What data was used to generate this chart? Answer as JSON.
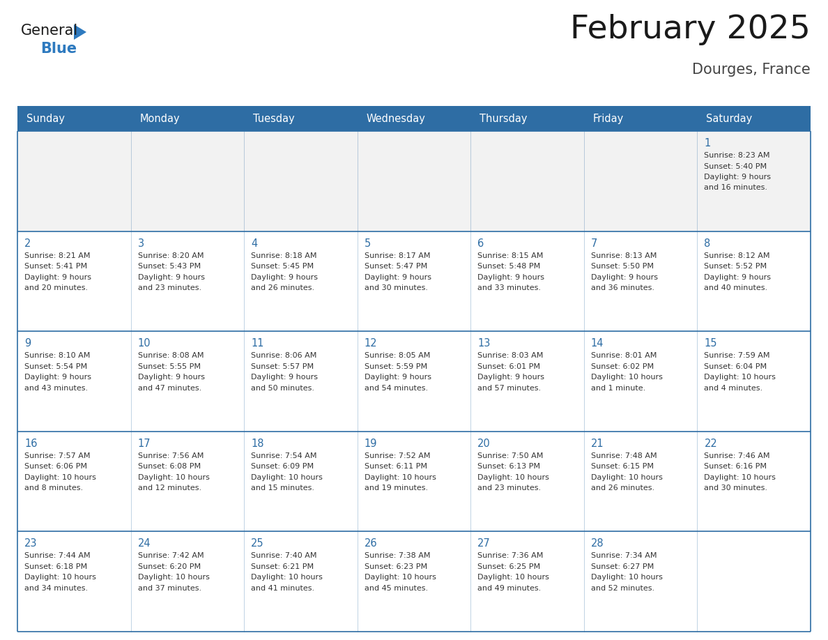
{
  "title": "February 2025",
  "subtitle": "Dourges, France",
  "header_bg": "#2e6da4",
  "header_text_color": "#ffffff",
  "cell_bg": "#ffffff",
  "cell_bg_alt": "#f2f2f2",
  "border_color": "#2e6da4",
  "divider_color": "#2e6da4",
  "day_headers": [
    "Sunday",
    "Monday",
    "Tuesday",
    "Wednesday",
    "Thursday",
    "Friday",
    "Saturday"
  ],
  "title_color": "#1a1a1a",
  "subtitle_color": "#444444",
  "day_num_color": "#2e6da4",
  "text_color": "#333333",
  "logo_black_color": "#1a1a1a",
  "logo_blue_color": "#2e7abf",
  "fig_width": 11.88,
  "fig_height": 9.18,
  "weeks": [
    [
      null,
      null,
      null,
      null,
      null,
      null,
      {
        "day": 1,
        "sunrise": "8:23 AM",
        "sunset": "5:40 PM",
        "daylight": "9 hours and 16 minutes."
      }
    ],
    [
      {
        "day": 2,
        "sunrise": "8:21 AM",
        "sunset": "5:41 PM",
        "daylight": "9 hours and 20 minutes."
      },
      {
        "day": 3,
        "sunrise": "8:20 AM",
        "sunset": "5:43 PM",
        "daylight": "9 hours and 23 minutes."
      },
      {
        "day": 4,
        "sunrise": "8:18 AM",
        "sunset": "5:45 PM",
        "daylight": "9 hours and 26 minutes."
      },
      {
        "day": 5,
        "sunrise": "8:17 AM",
        "sunset": "5:47 PM",
        "daylight": "9 hours and 30 minutes."
      },
      {
        "day": 6,
        "sunrise": "8:15 AM",
        "sunset": "5:48 PM",
        "daylight": "9 hours and 33 minutes."
      },
      {
        "day": 7,
        "sunrise": "8:13 AM",
        "sunset": "5:50 PM",
        "daylight": "9 hours and 36 minutes."
      },
      {
        "day": 8,
        "sunrise": "8:12 AM",
        "sunset": "5:52 PM",
        "daylight": "9 hours and 40 minutes."
      }
    ],
    [
      {
        "day": 9,
        "sunrise": "8:10 AM",
        "sunset": "5:54 PM",
        "daylight": "9 hours and 43 minutes."
      },
      {
        "day": 10,
        "sunrise": "8:08 AM",
        "sunset": "5:55 PM",
        "daylight": "9 hours and 47 minutes."
      },
      {
        "day": 11,
        "sunrise": "8:06 AM",
        "sunset": "5:57 PM",
        "daylight": "9 hours and 50 minutes."
      },
      {
        "day": 12,
        "sunrise": "8:05 AM",
        "sunset": "5:59 PM",
        "daylight": "9 hours and 54 minutes."
      },
      {
        "day": 13,
        "sunrise": "8:03 AM",
        "sunset": "6:01 PM",
        "daylight": "9 hours and 57 minutes."
      },
      {
        "day": 14,
        "sunrise": "8:01 AM",
        "sunset": "6:02 PM",
        "daylight": "10 hours and 1 minute."
      },
      {
        "day": 15,
        "sunrise": "7:59 AM",
        "sunset": "6:04 PM",
        "daylight": "10 hours and 4 minutes."
      }
    ],
    [
      {
        "day": 16,
        "sunrise": "7:57 AM",
        "sunset": "6:06 PM",
        "daylight": "10 hours and 8 minutes."
      },
      {
        "day": 17,
        "sunrise": "7:56 AM",
        "sunset": "6:08 PM",
        "daylight": "10 hours and 12 minutes."
      },
      {
        "day": 18,
        "sunrise": "7:54 AM",
        "sunset": "6:09 PM",
        "daylight": "10 hours and 15 minutes."
      },
      {
        "day": 19,
        "sunrise": "7:52 AM",
        "sunset": "6:11 PM",
        "daylight": "10 hours and 19 minutes."
      },
      {
        "day": 20,
        "sunrise": "7:50 AM",
        "sunset": "6:13 PM",
        "daylight": "10 hours and 23 minutes."
      },
      {
        "day": 21,
        "sunrise": "7:48 AM",
        "sunset": "6:15 PM",
        "daylight": "10 hours and 26 minutes."
      },
      {
        "day": 22,
        "sunrise": "7:46 AM",
        "sunset": "6:16 PM",
        "daylight": "10 hours and 30 minutes."
      }
    ],
    [
      {
        "day": 23,
        "sunrise": "7:44 AM",
        "sunset": "6:18 PM",
        "daylight": "10 hours and 34 minutes."
      },
      {
        "day": 24,
        "sunrise": "7:42 AM",
        "sunset": "6:20 PM",
        "daylight": "10 hours and 37 minutes."
      },
      {
        "day": 25,
        "sunrise": "7:40 AM",
        "sunset": "6:21 PM",
        "daylight": "10 hours and 41 minutes."
      },
      {
        "day": 26,
        "sunrise": "7:38 AM",
        "sunset": "6:23 PM",
        "daylight": "10 hours and 45 minutes."
      },
      {
        "day": 27,
        "sunrise": "7:36 AM",
        "sunset": "6:25 PM",
        "daylight": "10 hours and 49 minutes."
      },
      {
        "day": 28,
        "sunrise": "7:34 AM",
        "sunset": "6:27 PM",
        "daylight": "10 hours and 52 minutes."
      },
      null
    ]
  ]
}
